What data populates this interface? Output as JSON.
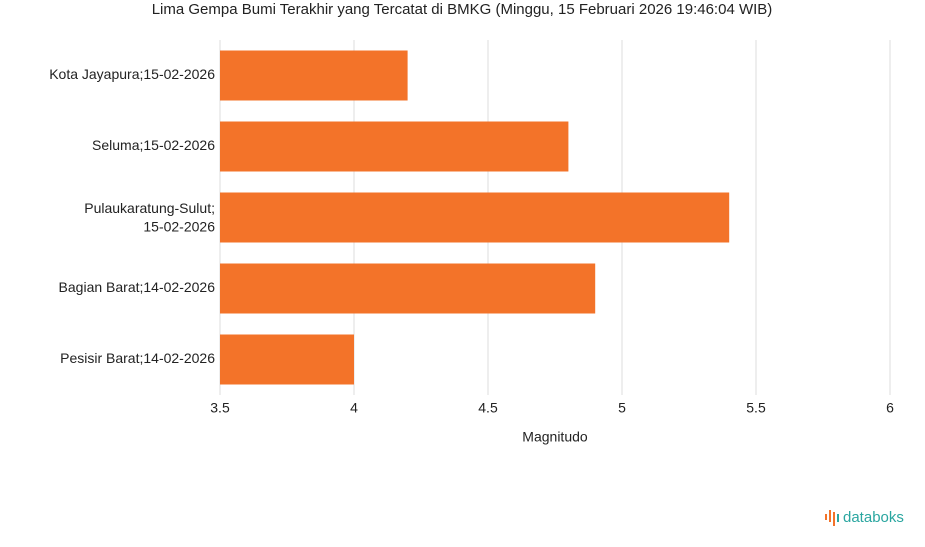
{
  "chart_data": {
    "type": "bar",
    "orientation": "horizontal",
    "title": "Lima Gempa Bumi Terakhir yang Tercatat di BMKG (Minggu, 15 Februari 2026 19:46:04 WIB)",
    "categories": [
      "Kota Jayapura;15-02-2026",
      "Seluma;15-02-2026",
      "Pulaukaratung-Sulut;15-02-2026",
      "Bagian Barat;14-02-2026",
      "Pesisir Barat;14-02-2026"
    ],
    "values": [
      4.2,
      4.8,
      5.4,
      4.9,
      4.0
    ],
    "color": "#f37329",
    "xlabel": "Magnitudo",
    "xlim": [
      3.5,
      6
    ],
    "xticks": [
      3.5,
      4,
      4.5,
      5,
      5.5,
      6
    ],
    "grid": true
  },
  "brand": "databoks"
}
